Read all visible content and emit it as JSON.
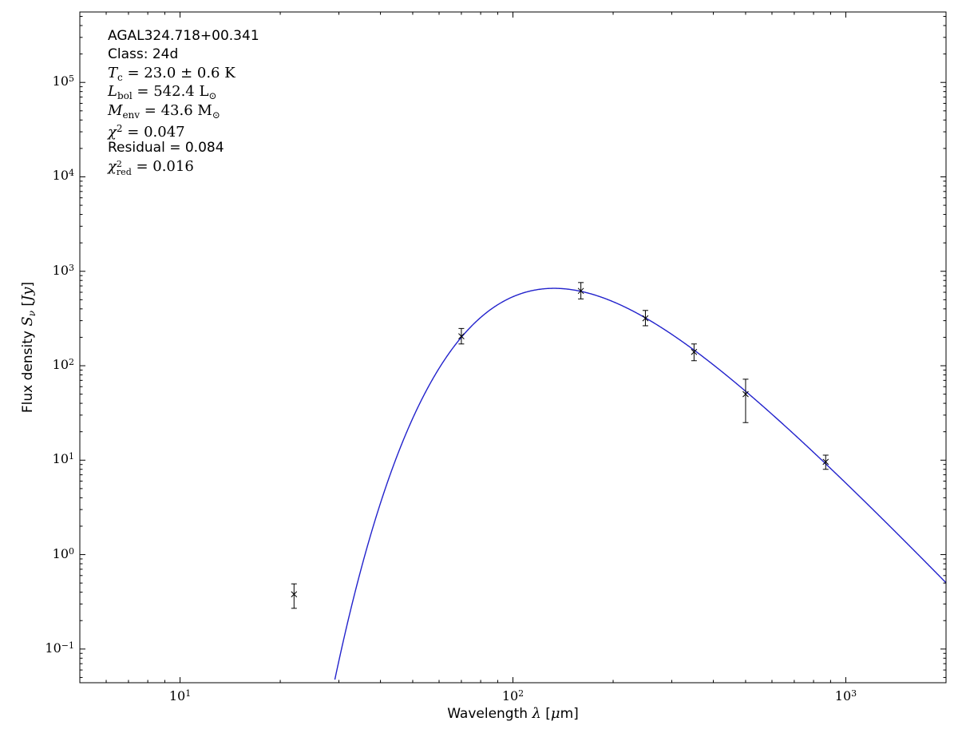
{
  "figure": {
    "background": "#ffffff"
  },
  "chart_data": {
    "type": "scatter",
    "title": "",
    "xlabel": "Wavelength λ [μm]",
    "ylabel": "Flux density S_ν [Jy]",
    "xscale": "log",
    "yscale": "log",
    "xlim": [
      5,
      2000
    ],
    "ylim": [
      0.044,
      557000
    ],
    "x_major_ticks": [
      10,
      100,
      1000
    ],
    "y_major_ticks": [
      0.1,
      1,
      10,
      100,
      1000,
      10000,
      100000
    ],
    "grid": false,
    "legend": false,
    "axis_color": "#000000",
    "xlabel_segments": [
      {
        "t": "Wavelength ",
        "f": "sans"
      },
      {
        "t": "λ",
        "f": "serif",
        "i": true
      },
      {
        "t": " [",
        "f": "sans"
      },
      {
        "t": "μ",
        "f": "serif",
        "i": true
      },
      {
        "t": "m]",
        "f": "sans"
      }
    ],
    "ylabel_segments": [
      {
        "t": "Flux density ",
        "f": "sans"
      },
      {
        "t": "S",
        "f": "serif",
        "i": true
      },
      {
        "t": "ν",
        "f": "serif",
        "i": true,
        "sub": true
      },
      {
        "t": " [",
        "f": "sans"
      },
      {
        "t": "Jy",
        "f": "serif",
        "i": true
      },
      {
        "t": "]",
        "f": "sans"
      }
    ],
    "points": [
      {
        "wavelength_um": 22,
        "flux_jy": 0.38,
        "flux_lo": 0.27,
        "flux_hi": 0.49
      },
      {
        "wavelength_um": 70,
        "flux_jy": 205,
        "flux_lo": 170,
        "flux_hi": 248
      },
      {
        "wavelength_um": 160,
        "flux_jy": 620,
        "flux_lo": 510,
        "flux_hi": 760
      },
      {
        "wavelength_um": 250,
        "flux_jy": 318,
        "flux_lo": 265,
        "flux_hi": 385
      },
      {
        "wavelength_um": 350,
        "flux_jy": 140,
        "flux_lo": 113,
        "flux_hi": 170
      },
      {
        "wavelength_um": 500,
        "flux_jy": 50,
        "flux_lo": 25,
        "flux_hi": 72
      },
      {
        "wavelength_um": 870,
        "flux_jy": 9.6,
        "flux_lo": 8.0,
        "flux_hi": 11.3
      }
    ],
    "marker": {
      "shape": "x",
      "color": "#000000",
      "size": 7
    },
    "errorbar": {
      "color": "#000000",
      "capsize": 7
    },
    "model_curve": {
      "type": "greybody",
      "T_K": 23.0,
      "beta": 1.75,
      "peak_wavelength_um": 133,
      "peak_flux_jy": 660,
      "lambda_start_um": 20,
      "lambda_end_um": 2000,
      "color": "#2222cc",
      "width": 1.4
    },
    "annotation": {
      "lines": [
        {
          "segments": [
            {
              "t": "AGAL324.718+00.341",
              "f": "sans"
            }
          ]
        },
        {
          "segments": [
            {
              "t": "Class: 24d",
              "f": "sans"
            }
          ]
        },
        {
          "segments": [
            {
              "t": "T",
              "f": "serif",
              "i": true
            },
            {
              "t": "c",
              "f": "serif",
              "sub": true
            },
            {
              "t": " = 23.0 ± 0.6 K",
              "f": "serif"
            }
          ]
        },
        {
          "segments": [
            {
              "t": "L",
              "f": "serif",
              "i": true
            },
            {
              "t": "bol",
              "f": "serif",
              "sub": true
            },
            {
              "t": " = 542.4 L",
              "f": "serif"
            },
            {
              "t": "⊙",
              "f": "serif",
              "sub": true
            }
          ]
        },
        {
          "segments": [
            {
              "t": "M",
              "f": "serif",
              "i": true
            },
            {
              "t": "env",
              "f": "serif",
              "sub": true
            },
            {
              "t": " = 43.6 M",
              "f": "serif"
            },
            {
              "t": "⊙",
              "f": "serif",
              "sub": true
            }
          ]
        },
        {
          "segments": [
            {
              "t": "χ",
              "f": "serif",
              "i": true
            },
            {
              "t": "2",
              "f": "serif",
              "sup": true
            },
            {
              "t": " = 0.047",
              "f": "serif"
            }
          ]
        },
        {
          "segments": [
            {
              "t": "Residual = 0.084",
              "f": "sans"
            }
          ]
        },
        {
          "segments": [
            {
              "t": "χ",
              "f": "serif",
              "i": true
            },
            {
              "stack": {
                "top": "2",
                "bottom": "red"
              },
              "f": "serif"
            },
            {
              "t": " = 0.016",
              "f": "serif"
            }
          ]
        }
      ]
    }
  }
}
